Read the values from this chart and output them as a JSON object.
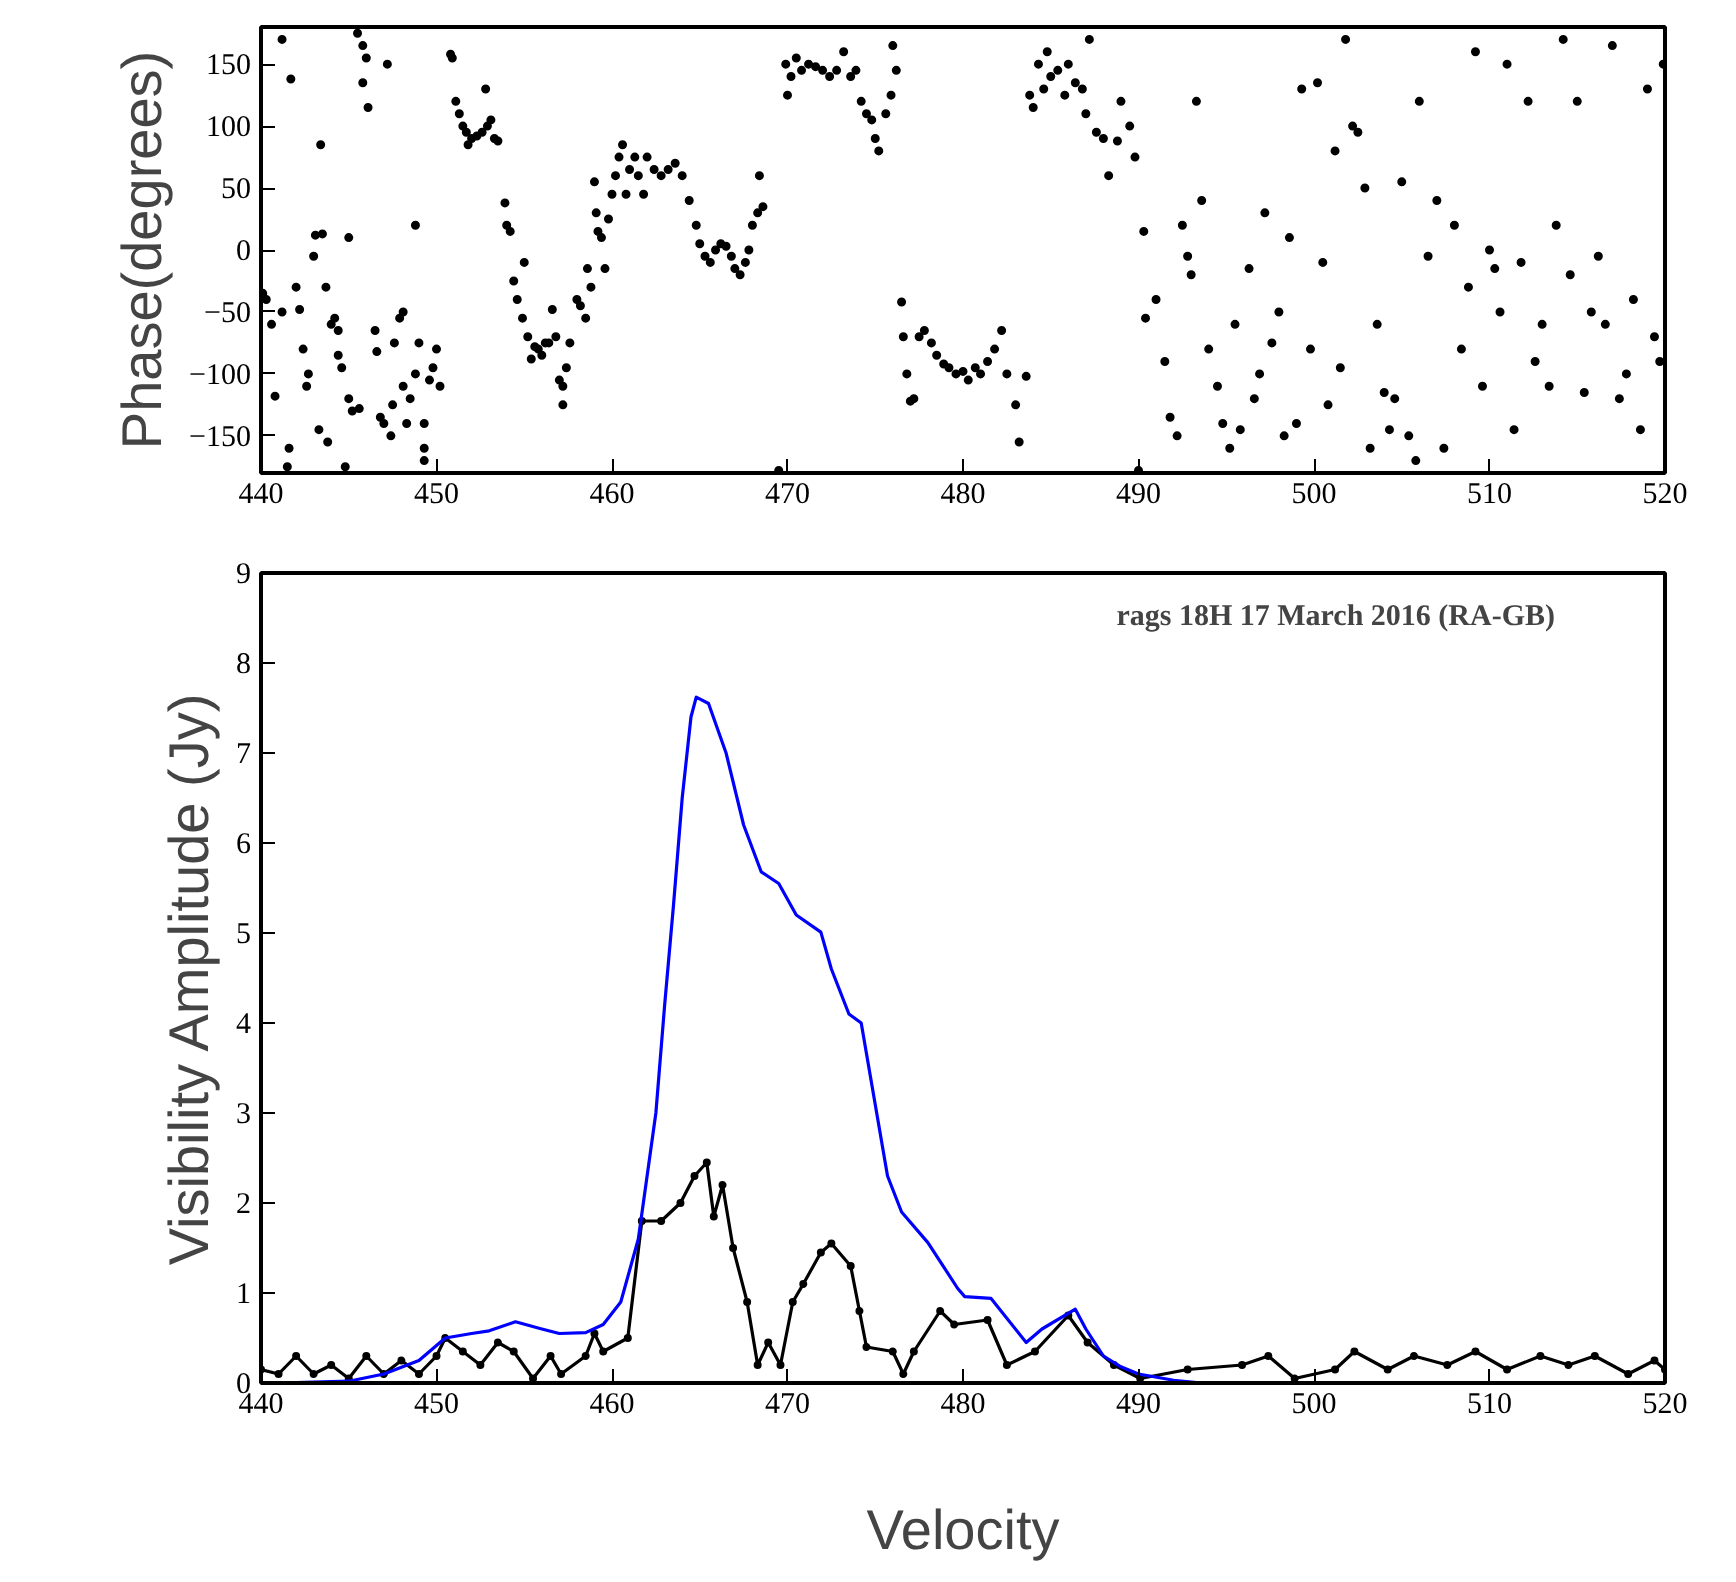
{
  "chart_data": [
    {
      "type": "scatter",
      "ylabel": "Phase(degrees)",
      "xlim": [
        440,
        520
      ],
      "ylim": [
        -180,
        180
      ],
      "xticks": [
        440,
        450,
        460,
        470,
        480,
        490,
        500,
        510,
        520
      ],
      "yticks": [
        -150,
        -100,
        -50,
        0,
        50,
        100,
        150
      ],
      "marker": "circle",
      "grid": false,
      "series": [
        {
          "color": "#000000",
          "x": [
            440.1,
            440.3,
            440.6,
            440.8,
            441.2,
            441.5,
            441.2,
            441.7,
            441.6,
            442.0,
            442.2,
            442.4,
            442.6,
            442.7,
            443.0,
            443.1,
            443.4,
            443.3,
            443.5,
            443.7,
            443.8,
            444.0,
            444.2,
            444.4,
            444.6,
            444.4,
            444.8,
            445.0,
            445.2,
            445.0,
            445.5,
            445.6,
            445.8,
            445.8,
            446.0,
            446.1,
            446.5,
            446.6,
            446.8,
            447.0,
            447.2,
            447.4,
            447.5,
            447.6,
            447.9,
            448.1,
            448.1,
            448.5,
            448.8,
            449.0,
            449.3,
            449.3,
            449.3,
            449.6,
            449.8,
            450.0,
            450.2,
            448.3,
            448.8,
            450.8,
            450.9,
            451.1,
            451.3,
            451.5,
            451.7,
            451.8,
            452.0,
            452.3,
            452.6,
            452.8,
            452.9,
            453.1,
            453.3,
            453.5,
            453.9,
            454.0,
            454.2,
            454.4,
            454.6,
            454.9,
            455.0,
            455.2,
            455.4,
            455.6,
            455.8,
            456.0,
            456.2,
            456.4,
            456.6,
            456.8,
            457.0,
            457.2,
            457.4,
            457.2,
            457.6,
            458.0,
            458.2,
            458.5,
            458.6,
            458.8,
            459.0,
            459.1,
            459.2,
            459.4,
            459.6,
            459.8,
            460.0,
            460.2,
            460.4,
            460.6,
            460.8,
            461.0,
            461.3,
            461.5,
            461.8,
            462.0,
            462.4,
            462.8,
            463.2,
            463.6,
            464.0,
            464.4,
            464.8,
            465.0,
            465.3,
            465.6,
            465.9,
            466.2,
            466.5,
            466.8,
            467.0,
            467.3,
            467.6,
            467.8,
            468.0,
            468.3,
            468.4,
            468.6,
            469.5,
            469.9,
            470.0,
            470.2,
            470.5,
            470.8,
            471.2,
            471.6,
            472.0,
            472.4,
            472.8,
            473.2,
            473.6,
            473.9,
            474.2,
            474.5,
            474.8,
            475.0,
            475.2,
            475.6,
            475.9,
            476.0,
            476.2,
            476.5,
            476.6,
            476.8,
            477.0,
            477.2,
            477.5,
            477.8,
            478.2,
            478.5,
            478.9,
            479.2,
            479.6,
            480.0,
            480.3,
            480.7,
            481.0,
            481.4,
            481.8,
            482.2,
            482.5,
            483.0,
            483.2,
            483.6,
            483.8,
            484.0,
            484.3,
            484.6,
            484.8,
            485.0,
            485.4,
            485.8,
            486.0,
            486.4,
            486.8,
            487.0,
            487.2,
            487.6,
            488.0,
            488.3,
            488.8,
            489.0,
            489.5,
            489.8,
            490.0,
            490.3,
            490.4,
            491.0,
            491.5,
            491.8,
            492.2,
            492.5,
            492.8,
            493.0,
            493.3,
            493.6,
            494.0,
            494.5,
            494.8,
            495.2,
            495.5,
            495.8,
            496.3,
            496.6,
            496.9,
            497.2,
            497.6,
            498.0,
            498.3,
            498.6,
            499.0,
            499.3,
            499.8,
            500.2,
            500.5,
            500.8,
            501.2,
            501.5,
            501.8,
            502.2,
            502.5,
            502.9,
            503.2,
            503.6,
            504.0,
            504.3,
            504.6,
            505.0,
            505.4,
            505.8,
            506.0,
            506.5,
            507.0,
            507.4,
            508.0,
            508.4,
            508.8,
            509.2,
            509.6,
            510.0,
            510.3,
            510.6,
            511.0,
            511.4,
            511.8,
            512.2,
            512.6,
            513.0,
            513.4,
            513.8,
            514.2,
            514.6,
            515.0,
            515.4,
            515.8,
            516.2,
            516.6,
            517.0,
            517.4,
            517.8,
            518.2,
            518.6,
            519.0,
            519.4,
            519.7,
            519.9
          ],
          "values": [
            -35,
            -40,
            -60,
            -118,
            170,
            -175,
            -50,
            138,
            -160,
            -30,
            -48,
            -80,
            -110,
            -100,
            -5,
            12,
            85,
            -145,
            13,
            -30,
            -155,
            -60,
            -55,
            -85,
            -95,
            -65,
            -175,
            -120,
            -130,
            10,
            175,
            -128,
            135,
            165,
            155,
            115,
            -65,
            -82,
            -135,
            -140,
            150,
            -150,
            -125,
            -75,
            -55,
            -50,
            -110,
            -120,
            -100,
            -75,
            -160,
            -170,
            -140,
            -105,
            -95,
            -80,
            -110,
            -140,
            20,
            158,
            155,
            120,
            110,
            100,
            95,
            85,
            90,
            92,
            95,
            130,
            100,
            105,
            90,
            88,
            38,
            20,
            15,
            -25,
            -40,
            -55,
            -10,
            -70,
            -88,
            -78,
            -80,
            -85,
            -75,
            -75,
            -48,
            -70,
            -105,
            -110,
            -95,
            -125,
            -75,
            -40,
            -45,
            -55,
            -15,
            -30,
            55,
            30,
            15,
            10,
            -15,
            25,
            45,
            60,
            75,
            85,
            45,
            65,
            75,
            60,
            45,
            75,
            65,
            60,
            65,
            70,
            60,
            40,
            20,
            5,
            -5,
            -10,
            0,
            5,
            3,
            -5,
            -15,
            -20,
            -10,
            0,
            20,
            30,
            60,
            35,
            -178,
            150,
            125,
            140,
            155,
            145,
            150,
            148,
            145,
            140,
            145,
            160,
            140,
            145,
            120,
            110,
            105,
            90,
            80,
            110,
            125,
            165,
            145,
            -42,
            -70,
            -100,
            -122,
            -120,
            -70,
            -65,
            -75,
            -85,
            -92,
            -95,
            -100,
            -98,
            -105,
            -95,
            -100,
            -90,
            -80,
            -65,
            -100,
            -125,
            -155,
            -102,
            125,
            115,
            150,
            130,
            160,
            140,
            145,
            125,
            150,
            135,
            130,
            110,
            170,
            95,
            90,
            60,
            88,
            120,
            100,
            75,
            -178,
            15,
            -55,
            -40,
            -90,
            -135,
            -150,
            20,
            -5,
            -20,
            120,
            40,
            -80,
            -110,
            -140,
            -160,
            -60,
            -145,
            -15,
            -120,
            -100,
            30,
            -75,
            -50,
            -150,
            10,
            -140,
            130,
            -80,
            135,
            -10,
            -125,
            80,
            -95,
            170,
            100,
            95,
            50,
            -160,
            -60,
            -115,
            -145,
            -120,
            55,
            -150,
            -170,
            120,
            -5,
            40,
            -160,
            20,
            -80,
            -30,
            160,
            -110,
            0,
            -15,
            -50,
            150,
            -145,
            -10,
            120,
            -90,
            -60,
            -110,
            20,
            170,
            -20,
            120,
            -115,
            -50,
            -5,
            -60,
            165,
            -120,
            -100,
            -40,
            -145,
            130,
            -70,
            -90,
            150
          ]
        }
      ]
    },
    {
      "type": "line",
      "xlabel": "Velocity",
      "ylabel": "Visibility Amplitude (Jy)",
      "xlim": [
        440,
        520
      ],
      "ylim": [
        0,
        9
      ],
      "xticks": [
        440,
        450,
        460,
        470,
        480,
        490,
        500,
        510,
        520
      ],
      "yticks": [
        0,
        1,
        2,
        3,
        4,
        5,
        6,
        7,
        8,
        9
      ],
      "grid": false,
      "annotations": [
        "rags 18H 17 March 2016 (RA-GB)"
      ],
      "series": [
        {
          "color": "#000000",
          "marker": "circle",
          "x": [
            440,
            441,
            442,
            443,
            444,
            445,
            446,
            447,
            448,
            449,
            450,
            450.5,
            451.5,
            452.5,
            453.5,
            454.4,
            455.5,
            456.5,
            457.1,
            458.5,
            459,
            459.5,
            460.9,
            461.7,
            462.8,
            463.9,
            464.7,
            465.4,
            465.8,
            466.3,
            466.9,
            467.7,
            468.3,
            468.9,
            469.6,
            470.3,
            470.9,
            471.9,
            472.5,
            473.6,
            474.1,
            474.5,
            476,
            476.6,
            477.2,
            478.7,
            479.5,
            481.4,
            482.5,
            484.1,
            486,
            487.1,
            488.6,
            490.1,
            492.8,
            495.9,
            497.4,
            498.9,
            501.2,
            502.3,
            504.2,
            505.7,
            507.6,
            509.2,
            511,
            512.9,
            514.5,
            516,
            517.9,
            519.4,
            520
          ],
          "values": [
            0.15,
            0.1,
            0.3,
            0.1,
            0.2,
            0.05,
            0.3,
            0.1,
            0.25,
            0.1,
            0.3,
            0.5,
            0.35,
            0.2,
            0.45,
            0.35,
            0.05,
            0.3,
            0.1,
            0.3,
            0.55,
            0.35,
            0.5,
            1.8,
            1.8,
            2.0,
            2.3,
            2.45,
            1.85,
            2.2,
            1.5,
            0.9,
            0.2,
            0.45,
            0.2,
            0.9,
            1.1,
            1.45,
            1.55,
            1.3,
            0.8,
            0.4,
            0.35,
            0.1,
            0.35,
            0.8,
            0.65,
            0.7,
            0.2,
            0.35,
            0.75,
            0.45,
            0.2,
            0.05,
            0.15,
            0.2,
            0.3,
            0.05,
            0.15,
            0.35,
            0.15,
            0.3,
            0.2,
            0.35,
            0.15,
            0.3,
            0.2,
            0.3,
            0.1,
            0.25,
            0.15
          ]
        },
        {
          "color": "#0000ff",
          "x": [
            441,
            445,
            447,
            449,
            450.5,
            452,
            453,
            454.5,
            456,
            457,
            458.5,
            459.5,
            460.5,
            461.5,
            462.5,
            463,
            463.5,
            464,
            464.5,
            464.8,
            465.5,
            466.5,
            467.5,
            468.5,
            469.5,
            470.5,
            471.9,
            472.5,
            473.5,
            474.2,
            475.7,
            476.5,
            478,
            479.7,
            480.1,
            481.6,
            483.6,
            484.5,
            486.4,
            487,
            488,
            489,
            490,
            492,
            493.6,
            520
          ],
          "values": [
            0,
            0.02,
            0.1,
            0.25,
            0.5,
            0.55,
            0.58,
            0.68,
            0.6,
            0.55,
            0.56,
            0.65,
            0.9,
            1.6,
            3,
            4.2,
            5.3,
            6.5,
            7.4,
            7.62,
            7.55,
            7.0,
            6.2,
            5.68,
            5.55,
            5.2,
            5.01,
            4.6,
            4.1,
            4.0,
            2.3,
            1.9,
            1.56,
            1.05,
            0.96,
            0.94,
            0.45,
            0.6,
            0.82,
            0.6,
            0.3,
            0.18,
            0.1,
            0.03,
            0,
            0
          ]
        }
      ]
    }
  ]
}
